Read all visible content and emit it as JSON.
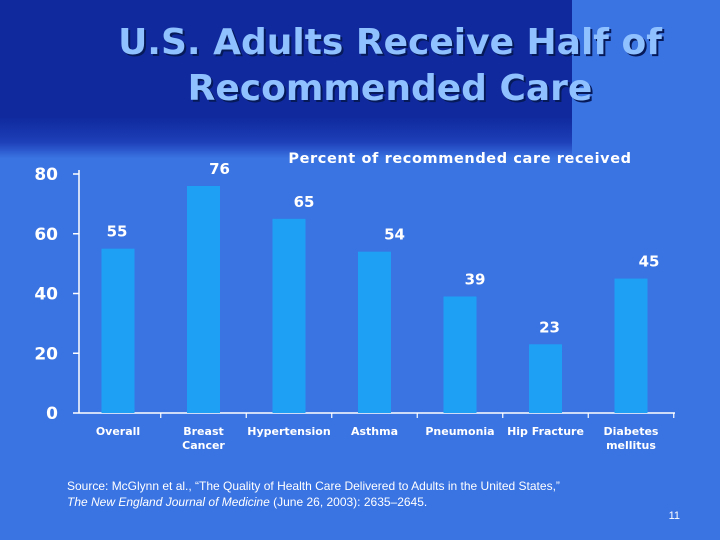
{
  "slide": {
    "title_line1": "U.S. Adults Receive Half of",
    "title_line2": "Recommended Care",
    "source_prefix": "Source: McGlynn et al., “The Quality of Health Care Delivered to Adults in the United States,”",
    "source_journal": "The New England Journal of Medicine",
    "source_suffix": " (June 26, 2003): 2635–2645.",
    "page_number": "11",
    "colors": {
      "background": "#3a73e2",
      "title_band": "#102a9e",
      "bar": "#1ea0f5",
      "title_text": "#8fc0ff"
    }
  },
  "chart_data": {
    "type": "bar",
    "title": "Percent of recommended care received",
    "categories": [
      [
        "Overall"
      ],
      [
        "Breast",
        "Cancer"
      ],
      [
        "Hypertension"
      ],
      [
        "Asthma"
      ],
      [
        "Pneumonia"
      ],
      [
        "Hip Fracture"
      ],
      [
        "Diabetes",
        "mellitus"
      ]
    ],
    "values": [
      55,
      76,
      65,
      54,
      39,
      23,
      45
    ],
    "data_labels": [
      "55",
      "76",
      "65",
      "54",
      "39",
      "23",
      "45"
    ],
    "yticks": [
      0,
      20,
      40,
      60,
      80
    ],
    "ylim": [
      0,
      80
    ],
    "xlabel": "",
    "ylabel": "",
    "grid": false
  }
}
